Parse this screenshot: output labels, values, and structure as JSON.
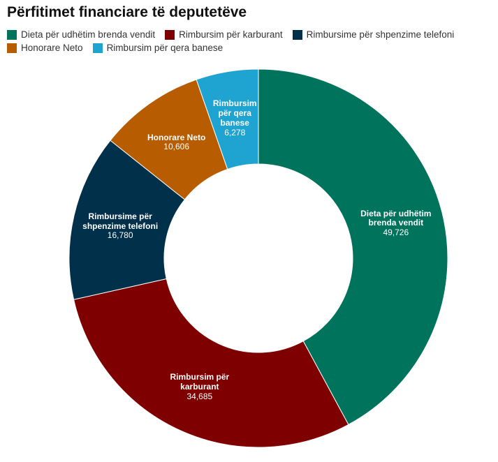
{
  "chart_data": {
    "type": "donut",
    "title": "Përfitimet financiare të deputetëve",
    "categories": [
      "Dieta për udhëtim brenda vendit",
      "Rimbursim për karburant",
      "Rimbursime për shpenzime telefoni",
      "Honorare Neto",
      "Rimbursim për qera banese"
    ],
    "values": [
      49726,
      34685,
      16780,
      10606,
      6278
    ],
    "value_labels": [
      "49,726",
      "34,685",
      "16,780",
      "10,606",
      "6,278"
    ],
    "colors": [
      "#00735c",
      "#7f0000",
      "#00304a",
      "#b85c00",
      "#1fa3d0"
    ]
  }
}
